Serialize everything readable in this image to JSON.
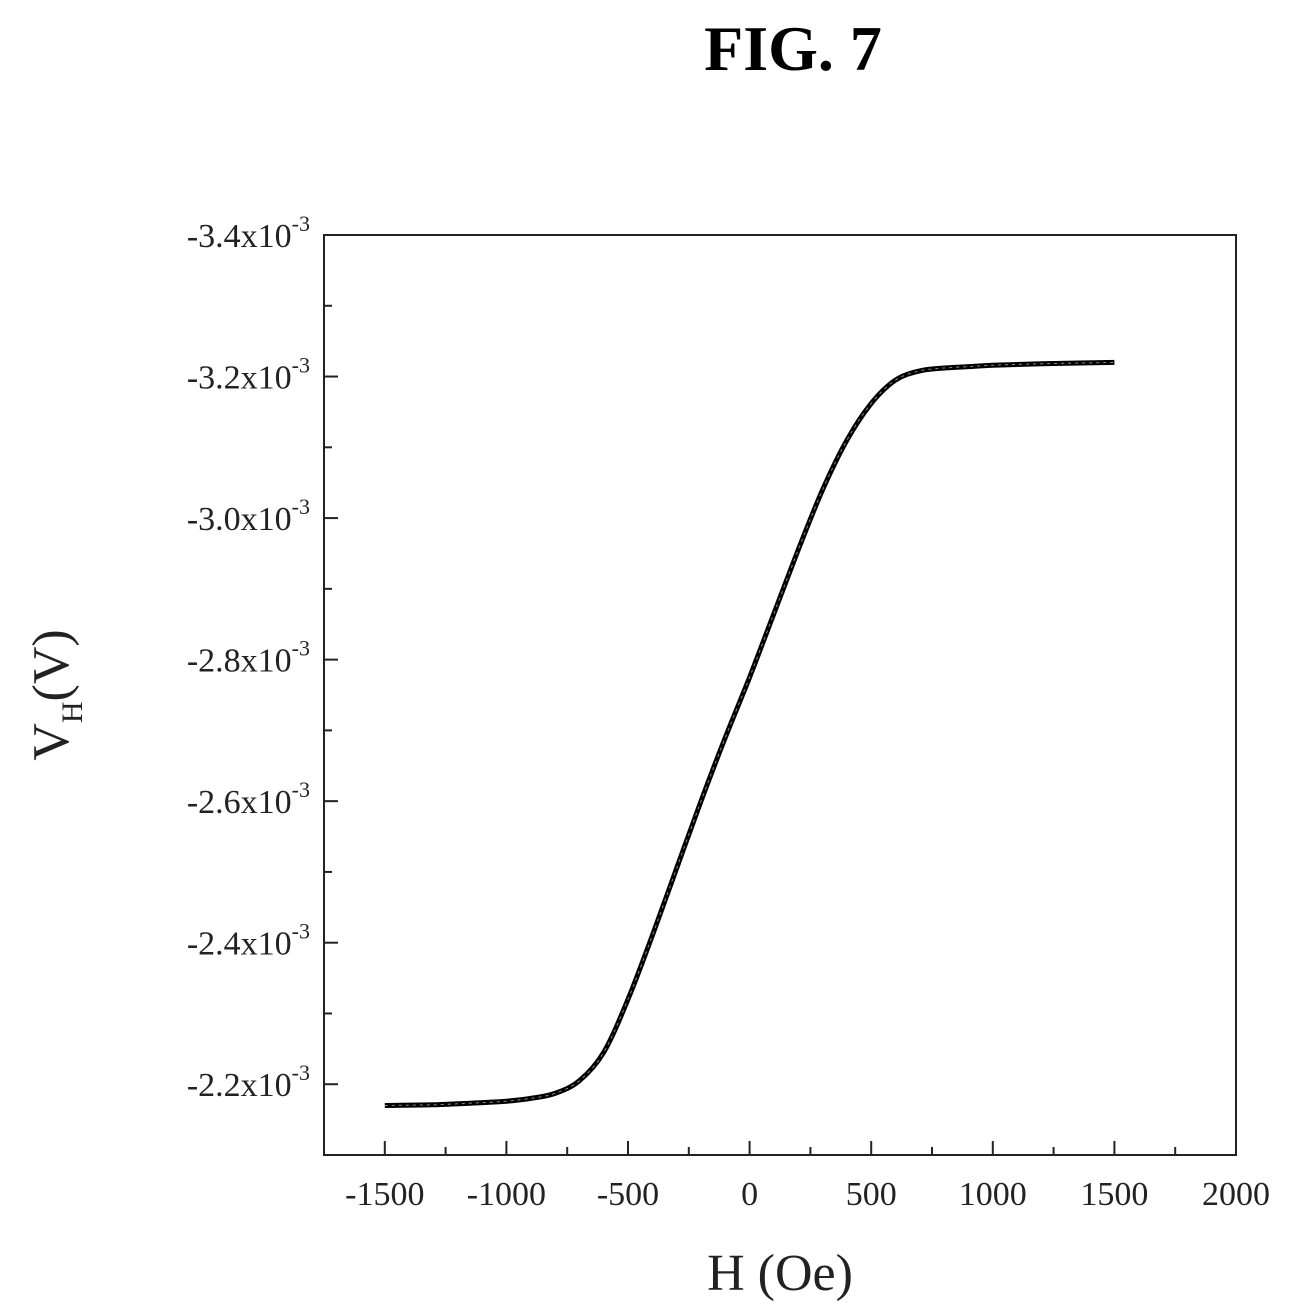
{
  "figure_title": "FIG. 7",
  "chart_data": {
    "type": "line",
    "title": "",
    "xlabel": "H (Oe)",
    "ylabel": {
      "main": "V",
      "sub": "H",
      "unit": "(V)"
    },
    "xlim": [
      -1750,
      2000
    ],
    "ylim": [
      -0.0021,
      -0.0034
    ],
    "x_ticks": [
      -1500,
      -1000,
      -500,
      0,
      500,
      1000,
      1500,
      2000
    ],
    "x_tick_labels": [
      "-1500",
      "-1000",
      "-500",
      "0",
      "500",
      "1000",
      "1500",
      "2000"
    ],
    "y_ticks": [
      -0.0034,
      -0.0032,
      -0.003,
      -0.0028,
      -0.0026,
      -0.0024,
      -0.0022
    ],
    "y_tick_labels": [
      {
        "mantissa": "-3.4x10",
        "exp": "-3"
      },
      {
        "mantissa": "-3.2x10",
        "exp": "-3"
      },
      {
        "mantissa": "-3.0x10",
        "exp": "-3"
      },
      {
        "mantissa": "-2.8x10",
        "exp": "-3"
      },
      {
        "mantissa": "-2.6x10",
        "exp": "-3"
      },
      {
        "mantissa": "-2.4x10",
        "exp": "-3"
      },
      {
        "mantissa": "-2.2x10",
        "exp": "-3"
      }
    ],
    "grid": false,
    "legend": "none",
    "series": [
      {
        "color": "#000000",
        "x": [
          -1500,
          -1300,
          -1100,
          -1000,
          -900,
          -800,
          -700,
          -600,
          -500,
          -400,
          -300,
          -200,
          -100,
          0,
          100,
          200,
          300,
          400,
          500,
          600,
          700,
          800,
          900,
          1000,
          1200,
          1500
        ],
        "y": [
          -0.00217,
          -0.002171,
          -0.002174,
          -0.002176,
          -0.00218,
          -0.002187,
          -0.002205,
          -0.002245,
          -0.00232,
          -0.00241,
          -0.002505,
          -0.0026,
          -0.00269,
          -0.002775,
          -0.002865,
          -0.002955,
          -0.00304,
          -0.00311,
          -0.003162,
          -0.003195,
          -0.003208,
          -0.003212,
          -0.003214,
          -0.003216,
          -0.003218,
          -0.00322
        ]
      }
    ]
  }
}
